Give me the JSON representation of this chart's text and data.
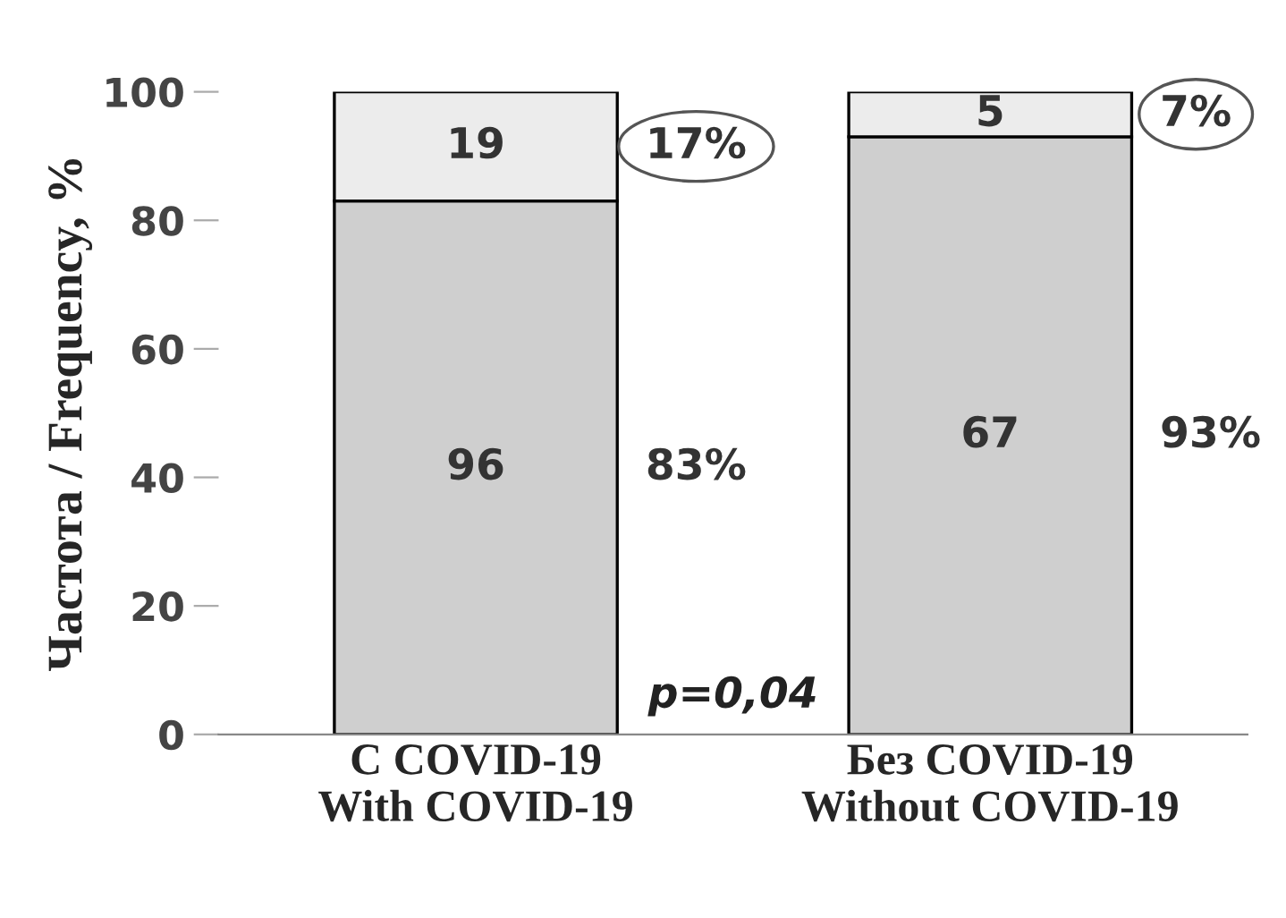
{
  "chart_data": {
    "type": "bar",
    "stacked": true,
    "ylabel": "Частота / Frequency, %",
    "categories": [
      "С COVID-19\nWith COVID-19",
      "Без COVID-19\nWithout COVID-19"
    ],
    "series": [
      {
        "color": "#cfcfcf",
        "values": [
          83,
          93
        ]
      },
      {
        "color": "#ececec",
        "values": [
          17,
          7
        ]
      }
    ],
    "ylim": [
      0,
      100
    ],
    "yticks": [
      0,
      20,
      40,
      60,
      80,
      100
    ],
    "grid": false,
    "legend": false,
    "annotations": [
      "96",
      "83%",
      "67",
      "93%",
      "19",
      "17%",
      "5",
      "7%",
      "p=0,04"
    ]
  }
}
